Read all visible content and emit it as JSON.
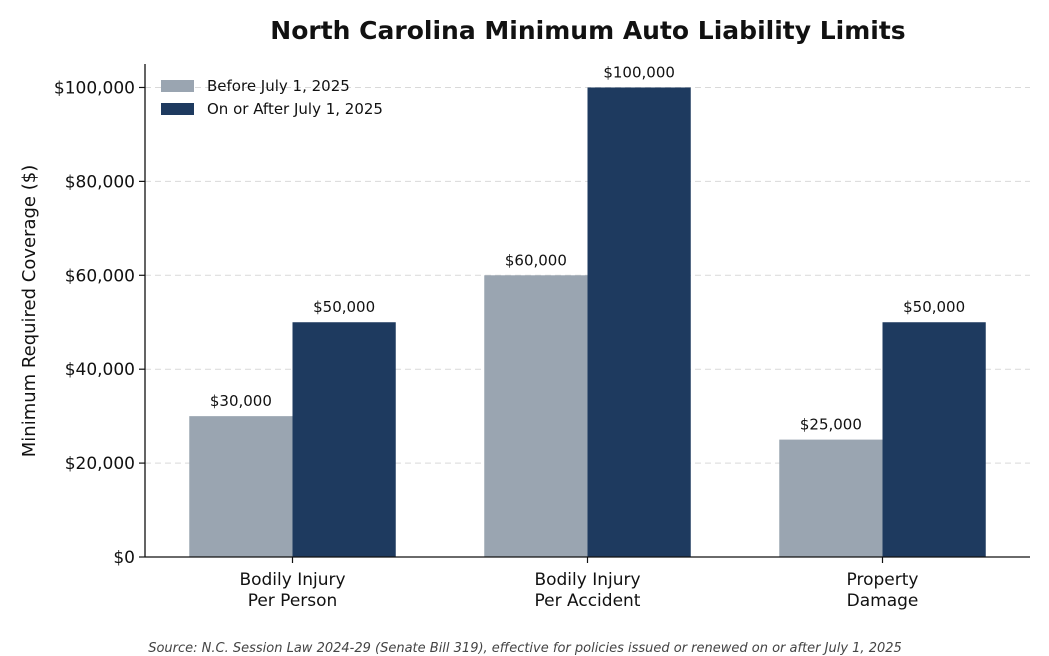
{
  "chart_data": {
    "type": "bar",
    "title": "North Carolina Minimum Auto Liability Limits",
    "ylabel": "Minimum Required Coverage ($)",
    "xlabel": "",
    "categories": [
      [
        "Bodily Injury",
        "Per Person"
      ],
      [
        "Bodily Injury",
        "Per Accident"
      ],
      [
        "Property",
        "Damage"
      ]
    ],
    "series": [
      {
        "name": "Before July 1, 2025",
        "color": "#9aa5b1",
        "values": [
          30000,
          60000,
          25000
        ],
        "labels": [
          "$30,000",
          "$60,000",
          "$25,000"
        ]
      },
      {
        "name": "On or After July 1, 2025",
        "color": "#1e3a5f",
        "values": [
          50000,
          100000,
          50000
        ],
        "labels": [
          "$50,000",
          "$100,000",
          "$50,000"
        ]
      }
    ],
    "ylim": [
      0,
      105000
    ],
    "yticks": [
      0,
      20000,
      40000,
      60000,
      80000,
      100000
    ],
    "ytick_labels": [
      "$0",
      "$20,000",
      "$40,000",
      "$60,000",
      "$80,000",
      "$100,000"
    ],
    "grid": "y-dashed",
    "legend_position": "top-left",
    "source": "Source: N.C. Session Law 2024-29 (Senate Bill 319), effective for policies issued or renewed on or after July 1, 2025"
  }
}
